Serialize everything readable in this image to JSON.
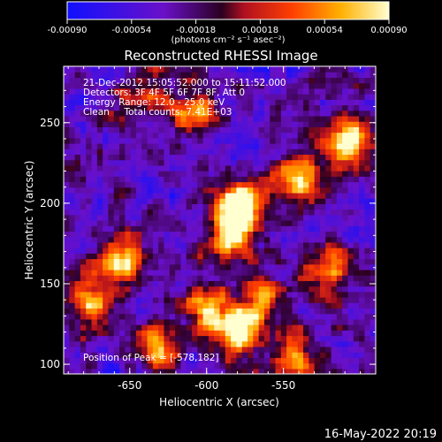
{
  "colorbar": {
    "tick_labels": [
      "-0.00090",
      "-0.00054",
      "-0.00018",
      "0.00018",
      "0.00054",
      "0.00090"
    ],
    "tick_values": [
      -0.0009,
      -0.00054,
      -0.00018,
      0.00018,
      0.00054,
      0.0009
    ],
    "range": [
      -0.0009,
      0.0009
    ],
    "units_label": "(photons cm⁻² s⁻¹ asec⁻²)",
    "colors": [
      "#1010ff",
      "#6a10c8",
      "#b01020",
      "#ff4000",
      "#ffb000",
      "#ffffd0"
    ]
  },
  "chart_data": {
    "type": "heatmap",
    "title": "Reconstructed RHESSI Image",
    "xlabel": "Heliocentric X (arcsec)",
    "ylabel": "Heliocentric Y (arcsec)",
    "xlim": [
      -693,
      -490
    ],
    "ylim": [
      94,
      285
    ],
    "x_ticks": [
      -650,
      -600,
      -550
    ],
    "x_tick_labels": [
      "-650",
      "-600",
      "-550"
    ],
    "y_ticks": [
      100,
      150,
      200,
      250
    ],
    "y_tick_labels": [
      "100",
      "150",
      "200",
      "250"
    ],
    "annotations": [
      "21-Dec-2012 15:05:52.000 to 15:11:52.000",
      "Detectors: 3F 4F 5F 6F 7F 8F, Att 0",
      "Energy Range: 12.0 - 25.0 keV",
      "Clean     Total counts: 7.41E+03"
    ],
    "peak_label": "Position of Peak = [-578,182]",
    "peak": [
      -578,
      182
    ],
    "bright_sources": [
      {
        "x": -578,
        "y": 200,
        "level": 1.0
      },
      {
        "x": -508,
        "y": 240,
        "level": 0.95
      },
      {
        "x": -585,
        "y": 182,
        "level": 0.85
      },
      {
        "x": -540,
        "y": 215,
        "level": 0.7
      },
      {
        "x": -582,
        "y": 120,
        "level": 0.8
      },
      {
        "x": -600,
        "y": 135,
        "level": 0.65
      },
      {
        "x": -655,
        "y": 165,
        "level": 0.75
      },
      {
        "x": -675,
        "y": 140,
        "level": 0.6
      },
      {
        "x": -610,
        "y": 255,
        "level": 0.55
      },
      {
        "x": -640,
        "y": 270,
        "level": 0.5
      },
      {
        "x": -565,
        "y": 140,
        "level": 0.6
      },
      {
        "x": -520,
        "y": 160,
        "level": 0.5
      },
      {
        "x": -630,
        "y": 110,
        "level": 0.55
      },
      {
        "x": -545,
        "y": 105,
        "level": 0.5
      }
    ]
  },
  "footer": {
    "timestamp": "16-May-2022 20:19"
  }
}
